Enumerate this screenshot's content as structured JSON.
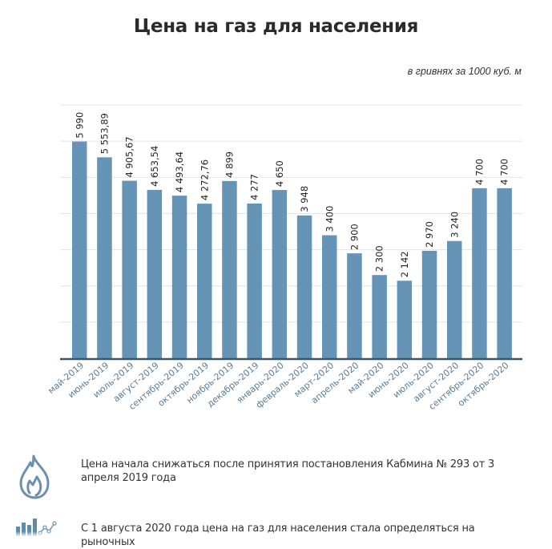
{
  "chart_data": {
    "type": "bar",
    "title": "Цена на газ для населения",
    "subtitle": "в гривнях за 1000 куб. м",
    "xlabel": "",
    "ylabel": "",
    "ylim": [
      0,
      7000
    ],
    "grid": true,
    "gridline_step": 1000,
    "y_tick_labels_shown": false,
    "bar_color": "#6594b7",
    "axis_color": "#3e5566",
    "label_color": "#5a7d98",
    "categories": [
      "май-2019",
      "июнь-2019",
      "июль-2019",
      "август-2019",
      "сентябрь-2019",
      "октябрь-2019",
      "ноябрь-2019",
      "декабрь-2019",
      "январь-2020",
      "февраль-2020",
      "март-2020",
      "апрель-2020",
      "май-2020",
      "июнь-2020",
      "июль-2020",
      "август-2020",
      "сентябрь-2020",
      "октябрь-2020"
    ],
    "values": [
      5990,
      5553.89,
      4905.67,
      4653.54,
      4493.64,
      4272.76,
      4899,
      4277,
      4650,
      3948,
      3400,
      2900,
      2300,
      2142,
      2970,
      3240,
      4700,
      4700
    ],
    "data_labels": [
      "5 990",
      "5 553,89",
      "4 905,67",
      "4 653,54",
      "4 493,64",
      "4 272,76",
      "4 899",
      "4 277",
      "4 650",
      "3 948",
      "3 400",
      "2 900",
      "2 300",
      "2 142",
      "2 970",
      "3 240",
      "4 700",
      "4 700"
    ]
  },
  "notes": [
    {
      "icon": "flame-icon",
      "text": "Цена начала снижаться после принятия постановления Кабмина № 293 от 3 апреля 2019 года"
    },
    {
      "icon": "bar-chart-line-icon",
      "text": "С 1 августа 2020 года цена на газ для населения стала определяться на рыночных"
    }
  ]
}
